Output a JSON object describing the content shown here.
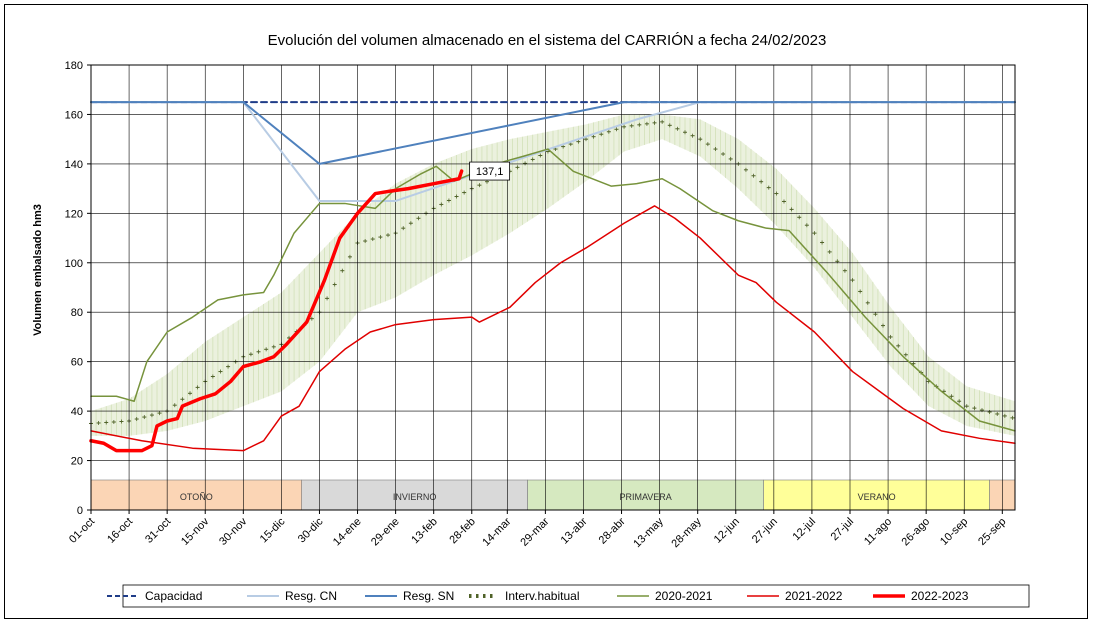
{
  "chart_data": {
    "type": "line",
    "title": "Evolución del volumen almacenado en el sistema del CARRIÓN a fecha 24/02/2023",
    "ylabel": "Volumen embalsado hm3",
    "xlabel": "",
    "ylim": [
      0,
      180
    ],
    "yticks": [
      "0",
      "20",
      "40",
      "60",
      "80",
      "100",
      "120",
      "140",
      "160",
      "180"
    ],
    "xrange_days": [
      0,
      364
    ],
    "x_ticks": [
      {
        "label": "01-oct",
        "day": 0
      },
      {
        "label": "16-oct",
        "day": 15
      },
      {
        "label": "31-oct",
        "day": 30
      },
      {
        "label": "15-nov",
        "day": 45
      },
      {
        "label": "30-nov",
        "day": 60
      },
      {
        "label": "15-dic",
        "day": 75
      },
      {
        "label": "30-dic",
        "day": 90
      },
      {
        "label": "14-ene",
        "day": 105
      },
      {
        "label": "29-ene",
        "day": 120
      },
      {
        "label": "13-feb",
        "day": 135
      },
      {
        "label": "28-feb",
        "day": 150
      },
      {
        "label": "14-mar",
        "day": 164
      },
      {
        "label": "29-mar",
        "day": 179
      },
      {
        "label": "13-abr",
        "day": 194
      },
      {
        "label": "28-abr",
        "day": 209
      },
      {
        "label": "13-may",
        "day": 224
      },
      {
        "label": "28-may",
        "day": 239
      },
      {
        "label": "12-jun",
        "day": 254
      },
      {
        "label": "27-jun",
        "day": 269
      },
      {
        "label": "12-jul",
        "day": 284
      },
      {
        "label": "27-jul",
        "day": 299
      },
      {
        "label": "11-ago",
        "day": 314
      },
      {
        "label": "26-ago",
        "day": 329
      },
      {
        "label": "10-sep",
        "day": 344
      },
      {
        "label": "25-sep",
        "day": 359
      }
    ],
    "seasons": [
      {
        "name": "OTOÑO",
        "start": 0,
        "end": 83,
        "color": "#fbd5b5"
      },
      {
        "name": "INVIERNO",
        "start": 83,
        "end": 172,
        "color": "#d9d9d9"
      },
      {
        "name": "PRIMAVERA",
        "start": 172,
        "end": 265,
        "color": "#d6e9c0"
      },
      {
        "name": "VERANO",
        "start": 265,
        "end": 354,
        "color": "#ffff99"
      },
      {
        "name": "",
        "start": 354,
        "end": 364,
        "color": "#fbd5b5"
      }
    ],
    "band": {
      "name": "Interv.habitual",
      "days": [
        0,
        15,
        30,
        45,
        60,
        75,
        90,
        105,
        120,
        135,
        150,
        165,
        180,
        195,
        210,
        225,
        240,
        255,
        270,
        285,
        300,
        315,
        330,
        345,
        364
      ],
      "lower": [
        30,
        30,
        32,
        36,
        42,
        48,
        60,
        80,
        86,
        95,
        103,
        112,
        122,
        133,
        145,
        150,
        143,
        130,
        115,
        98,
        78,
        58,
        42,
        34,
        30
      ],
      "upper": [
        40,
        45,
        55,
        68,
        78,
        88,
        104,
        120,
        132,
        140,
        146,
        150,
        153,
        156,
        160,
        160,
        158,
        150,
        138,
        122,
        104,
        82,
        62,
        50,
        44
      ],
      "mean": [
        35,
        36,
        40,
        52,
        62,
        67,
        80,
        108,
        112,
        122,
        130,
        137,
        145,
        150,
        155,
        157,
        150,
        140,
        128,
        112,
        93,
        70,
        52,
        42,
        37
      ]
    },
    "series": [
      {
        "name": "Capacidad",
        "color": "#1f3c88",
        "style": "dash",
        "width": 2,
        "points": [
          [
            0,
            165
          ],
          [
            60,
            165
          ],
          [
            210,
            165
          ],
          [
            364,
            165
          ]
        ]
      },
      {
        "name": "Resg. CN",
        "color": "#b8cce4",
        "style": "solid",
        "width": 2,
        "points": [
          [
            0,
            165
          ],
          [
            60,
            165
          ],
          [
            90,
            125
          ],
          [
            120,
            125
          ],
          [
            215,
            158
          ],
          [
            240,
            165
          ],
          [
            364,
            165
          ]
        ]
      },
      {
        "name": "Resg. SN",
        "color": "#4f81bd",
        "style": "solid",
        "width": 2,
        "points": [
          [
            0,
            165
          ],
          [
            60,
            165
          ],
          [
            90,
            140
          ],
          [
            210,
            165
          ],
          [
            364,
            165
          ]
        ]
      },
      {
        "name": "2020-2021",
        "color": "#77933c",
        "style": "solid",
        "width": 1.5,
        "points": [
          [
            0,
            46
          ],
          [
            10,
            46
          ],
          [
            17,
            44
          ],
          [
            22,
            60
          ],
          [
            30,
            72
          ],
          [
            40,
            78
          ],
          [
            50,
            85
          ],
          [
            60,
            87
          ],
          [
            68,
            88
          ],
          [
            72,
            95
          ],
          [
            80,
            112
          ],
          [
            90,
            124
          ],
          [
            100,
            124
          ],
          [
            112,
            122
          ],
          [
            120,
            130
          ],
          [
            130,
            136
          ],
          [
            136,
            139
          ],
          [
            143,
            133
          ],
          [
            150,
            136
          ],
          [
            163,
            141
          ],
          [
            170,
            143
          ],
          [
            180,
            146
          ],
          [
            190,
            137
          ],
          [
            205,
            131
          ],
          [
            215,
            132
          ],
          [
            225,
            134
          ],
          [
            232,
            130
          ],
          [
            245,
            121
          ],
          [
            255,
            117
          ],
          [
            266,
            114
          ],
          [
            275,
            113
          ],
          [
            290,
            96
          ],
          [
            305,
            78
          ],
          [
            320,
            62
          ],
          [
            335,
            48
          ],
          [
            350,
            36
          ],
          [
            364,
            32
          ]
        ]
      },
      {
        "name": "2021-2022",
        "color": "#e00000",
        "style": "solid",
        "width": 1.5,
        "points": [
          [
            0,
            32
          ],
          [
            20,
            28
          ],
          [
            40,
            25
          ],
          [
            60,
            24
          ],
          [
            68,
            28
          ],
          [
            75,
            38
          ],
          [
            82,
            42
          ],
          [
            90,
            56
          ],
          [
            100,
            65
          ],
          [
            110,
            72
          ],
          [
            120,
            75
          ],
          [
            135,
            77
          ],
          [
            150,
            78
          ],
          [
            153,
            76
          ],
          [
            165,
            82
          ],
          [
            175,
            92
          ],
          [
            185,
            100
          ],
          [
            195,
            106
          ],
          [
            210,
            116
          ],
          [
            222,
            123
          ],
          [
            230,
            118
          ],
          [
            240,
            110
          ],
          [
            255,
            95
          ],
          [
            262,
            92
          ],
          [
            270,
            84
          ],
          [
            285,
            72
          ],
          [
            300,
            56
          ],
          [
            320,
            41
          ],
          [
            335,
            32
          ],
          [
            350,
            29
          ],
          [
            364,
            27
          ]
        ]
      },
      {
        "name": "2022-2023",
        "color": "#ff0000",
        "style": "solid",
        "width": 3.5,
        "points": [
          [
            0,
            28
          ],
          [
            5,
            27
          ],
          [
            10,
            24
          ],
          [
            20,
            24
          ],
          [
            24,
            26
          ],
          [
            26,
            34
          ],
          [
            30,
            36
          ],
          [
            34,
            37
          ],
          [
            36,
            42
          ],
          [
            43,
            45
          ],
          [
            49,
            47
          ],
          [
            55,
            52
          ],
          [
            60,
            58
          ],
          [
            67,
            60
          ],
          [
            72,
            62
          ],
          [
            77,
            67
          ],
          [
            85,
            76
          ],
          [
            92,
            93
          ],
          [
            98,
            110
          ],
          [
            105,
            120
          ],
          [
            112,
            128
          ],
          [
            118,
            129
          ],
          [
            125,
            130
          ],
          [
            135,
            132
          ],
          [
            145,
            134
          ],
          [
            146,
            137.1
          ]
        ]
      }
    ],
    "annotation": {
      "label": "137,1",
      "day": 146,
      "value": 137.1
    },
    "legend": [
      "Capacidad",
      "Resg. CN",
      "Resg. SN",
      "Interv.habitual",
      "2020-2021",
      "2021-2022",
      "2022-2023"
    ],
    "legend_position": "bottom"
  }
}
